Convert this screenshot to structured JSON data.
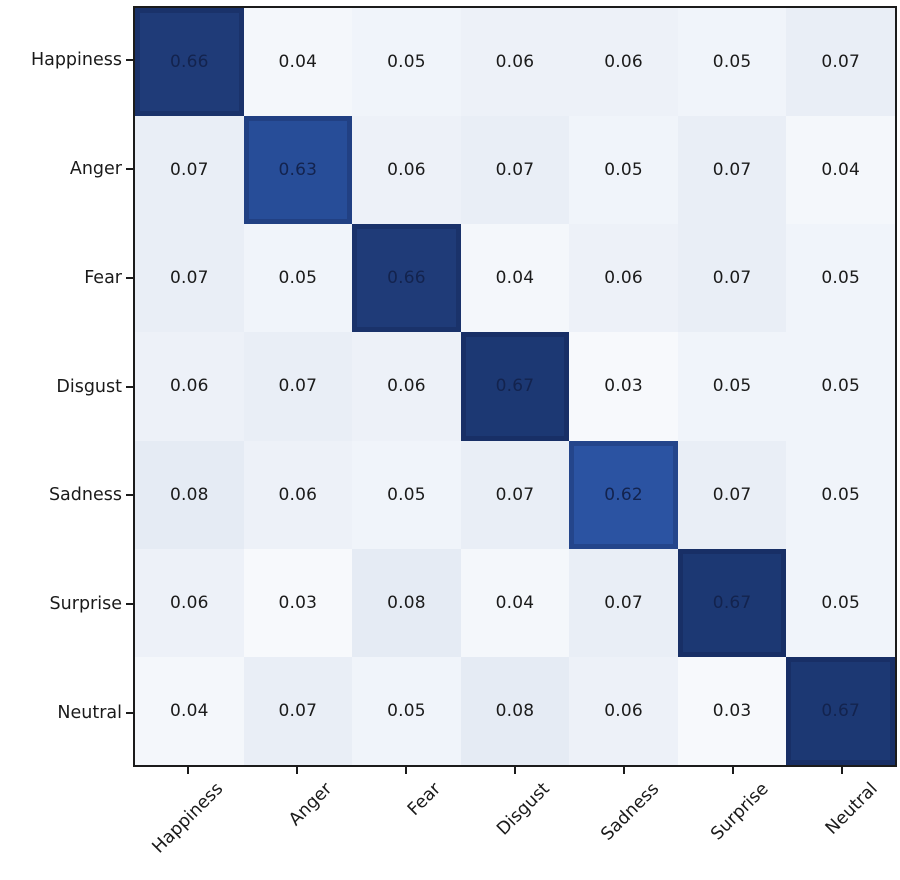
{
  "chart_data": {
    "type": "heatmap",
    "title": "",
    "colormap": "Blues",
    "row_labels": [
      "Happiness",
      "Anger",
      "Fear",
      "Disgust",
      "Sadness",
      "Surprise",
      "Neutral"
    ],
    "col_labels": [
      "Happiness",
      "Anger",
      "Fear",
      "Disgust",
      "Sadness",
      "Surprise",
      "Neutral"
    ],
    "matrix": [
      [
        0.66,
        0.04,
        0.05,
        0.06,
        0.06,
        0.05,
        0.07
      ],
      [
        0.07,
        0.63,
        0.06,
        0.07,
        0.05,
        0.07,
        0.04
      ],
      [
        0.07,
        0.05,
        0.66,
        0.04,
        0.06,
        0.07,
        0.05
      ],
      [
        0.06,
        0.07,
        0.06,
        0.67,
        0.03,
        0.05,
        0.05
      ],
      [
        0.08,
        0.06,
        0.05,
        0.07,
        0.62,
        0.07,
        0.05
      ],
      [
        0.06,
        0.03,
        0.08,
        0.04,
        0.07,
        0.67,
        0.05
      ],
      [
        0.04,
        0.07,
        0.05,
        0.08,
        0.06,
        0.03,
        0.67
      ]
    ],
    "x_tick_rotation_deg": 45,
    "value_colors": {
      "0.03": "#f7f9fc",
      "0.04": "#f4f7fb",
      "0.05": "#f0f4fa",
      "0.06": "#edf1f8",
      "0.07": "#e9eef6",
      "0.08": "#e5ebf4",
      "0.62": "#2b53a2",
      "0.63": "#274d98",
      "0.66": "#1f3b78",
      "0.67": "#1c3873"
    },
    "dark_threshold": 0.5,
    "cell_text_color_light_bg": "#1b1b1b",
    "cell_text_color_dark_bg": "#13234e",
    "frame_color": "#1b1b1b",
    "background": "#ffffff"
  }
}
